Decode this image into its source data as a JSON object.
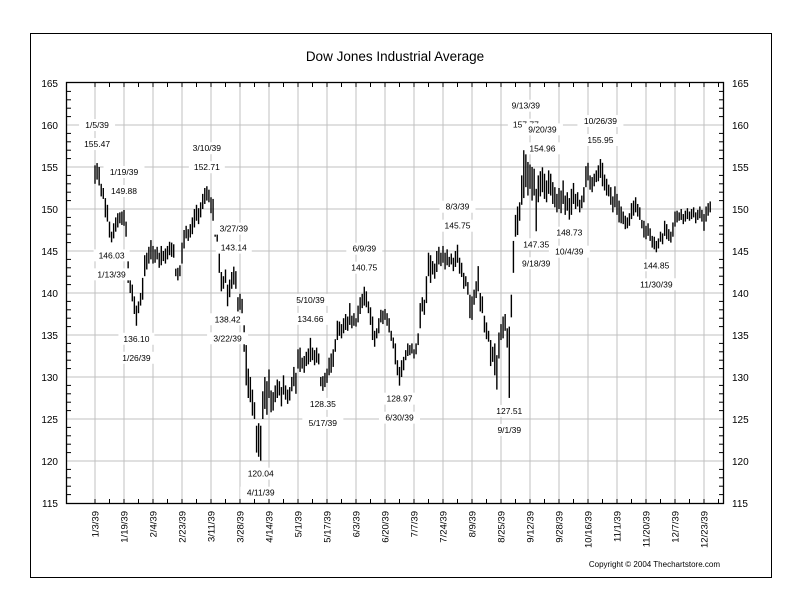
{
  "chart_data": {
    "type": "bar",
    "subtype": "high-low",
    "title": "Dow Jones Industrial Average",
    "copyright": "Copyright © 2004 Thechartstore.com",
    "ylim": [
      115,
      165
    ],
    "yticks": [
      115,
      120,
      125,
      130,
      135,
      140,
      145,
      150,
      155,
      160,
      165
    ],
    "y_axis_both_sides": true,
    "grid": true,
    "xticks": [
      "1/3/39",
      "1/19/39",
      "2/4/39",
      "2/23/39",
      "3/11/39",
      "3/28/39",
      "4/14/39",
      "5/1/39",
      "5/17/39",
      "6/3/39",
      "6/20/39",
      "7/7/39",
      "7/24/39",
      "8/9/39",
      "8/25/39",
      "9/12/39",
      "9/28/39",
      "10/16/39",
      "11/1/39",
      "11/20/39",
      "12/7/39",
      "12/23/39"
    ],
    "colors": {
      "bars": "#000000",
      "grid": "#c0c0c0",
      "frame": "#000000"
    },
    "high": [
      155.2,
      155.47,
      155,
      153,
      152.5,
      151.3,
      150.5,
      148.5,
      147.3,
      148.3,
      149,
      149.5,
      149.6,
      149.7,
      149.88,
      148.5,
      144.2,
      142,
      141,
      139.6,
      138.5,
      139,
      140,
      141.8,
      144.5,
      144.8,
      145.5,
      146.3,
      145.6,
      145.2,
      145.5,
      144.8,
      145.6,
      145,
      145.3,
      145.6,
      146.1,
      146,
      145.8,
      142.9,
      143,
      143.3,
      146,
      147.5,
      148,
      147.6,
      148.2,
      149,
      150,
      150.5,
      150.1,
      150.8,
      151.8,
      152.5,
      152.71,
      152.3,
      151.4,
      151.2,
      148,
      147,
      145.7,
      142.5,
      142,
      142.8,
      141,
      141.6,
      142.5,
      143.14,
      142.6,
      139.5,
      139.9,
      139.3,
      136.2,
      133.8,
      131,
      130,
      128.5,
      127,
      124.2,
      124.5,
      124.2,
      128.3,
      130,
      129.5,
      130.9,
      128.4,
      128.2,
      129,
      129.7,
      129.5,
      128.8,
      130.2,
      129,
      128.5,
      128.8,
      130,
      131.2,
      130.5,
      133.3,
      133.5,
      132.3,
      132.5,
      133,
      133.4,
      134.66,
      133.5,
      133.2,
      133.5,
      132.8,
      130,
      130.1,
      130.5,
      131,
      132.3,
      132.8,
      133.3,
      134.5,
      136.7,
      136.6,
      136.3,
      137,
      137.5,
      137.2,
      138.8,
      137.3,
      137.6,
      137,
      138.5,
      139.5,
      139.9,
      140.75,
      140.2,
      139,
      138.3,
      137.2,
      135.5,
      135.8,
      137,
      138,
      137.9,
      138.1,
      137.6,
      137,
      135.5,
      134.7,
      134,
      132,
      131.2,
      132,
      132.4,
      133.2,
      134,
      133.8,
      134,
      133.3,
      134,
      135.2,
      138.8,
      139.5,
      139.2,
      142,
      144.8,
      144.5,
      143.8,
      143.5,
      145,
      145.5,
      144.8,
      145.6,
      144.8,
      145.2,
      144.3,
      144.7,
      144.2,
      145,
      145.75,
      144.2,
      143.6,
      142.4,
      142,
      141.3,
      139.8,
      139.6,
      140.4,
      141.4,
      143.2,
      140,
      139.6,
      137.3,
      136.5,
      135.5,
      134.4,
      133.6,
      134,
      132.6,
      135.3,
      136.3,
      137.2,
      137.5,
      135.8,
      136,
      139.8,
      146.2,
      149.3,
      150.3,
      150.8,
      154,
      157,
      157.77,
      155.6,
      155.3,
      155,
      154.8,
      152.4,
      154,
      154.5,
      154.96,
      154.2,
      153.4,
      154.6,
      154.2,
      153.2,
      152.6,
      151.8,
      152.5,
      152.2,
      153.4,
      151.6,
      152,
      151.3,
      152.4,
      153.1,
      151.8,
      152,
      151.1,
      151.6,
      152.6,
      155.1,
      155.5,
      154,
      153.8,
      154.2,
      154.6,
      155.2,
      155.95,
      155.5,
      154.1,
      153.6,
      152.9,
      152.6,
      151.5,
      152.7,
      151.8,
      151,
      150.3,
      149.7,
      149.2,
      149,
      149.5,
      150.7,
      151,
      151.4,
      150.6,
      150.2,
      148.7,
      148.6,
      148,
      148.3,
      147.7,
      146.8,
      146.7,
      146.2,
      146.5,
      147.3,
      147.1,
      148.6,
      148.2,
      147.6,
      147.3,
      148.4,
      149.7,
      149.8,
      149.6,
      150,
      149.4,
      149.8,
      150.1,
      149.7,
      150,
      150.2,
      149.6,
      149.9,
      150.3,
      149.9,
      149.4,
      150.3,
      150.7,
      150.9
    ],
    "low": [
      153,
      153.5,
      152.8,
      151.5,
      151.2,
      149,
      148.5,
      146.6,
      146.03,
      146.5,
      147.3,
      147.8,
      148.3,
      148.1,
      148,
      146.7,
      141.2,
      140,
      139,
      137.5,
      136.1,
      137.6,
      138.5,
      139.2,
      142,
      142.8,
      143.5,
      144,
      143.5,
      143.6,
      144,
      143,
      143.3,
      143.8,
      143.5,
      144,
      144.5,
      144.3,
      144.2,
      142,
      141.5,
      142,
      143.5,
      145.3,
      146.5,
      146.2,
      146.6,
      147,
      147.8,
      148.6,
      148.2,
      149,
      150,
      150.6,
      151,
      150.8,
      149.5,
      148.6,
      146.7,
      145.5,
      142.4,
      140.2,
      140.5,
      141.2,
      138.42,
      139.5,
      140.5,
      141,
      140.5,
      137.8,
      138,
      137.5,
      133,
      129,
      127.5,
      127,
      125.4,
      125,
      121,
      120.5,
      120.04,
      125,
      126.2,
      125.5,
      127.5,
      125.8,
      126,
      127,
      127.5,
      127.8,
      126.5,
      127.9,
      127.3,
      126.8,
      127.2,
      128.3,
      128.9,
      128,
      131,
      130.6,
      131,
      130.5,
      131.3,
      131.5,
      131.8,
      132,
      131.4,
      131.7,
      131.5,
      128.9,
      128.35,
      128.8,
      129.3,
      130.2,
      130.5,
      131.2,
      133,
      134.4,
      134.9,
      134.6,
      135.2,
      135.6,
      135.5,
      136.2,
      135.8,
      136.1,
      136,
      136.5,
      137.5,
      138.2,
      138.5,
      138.3,
      137.6,
      136.2,
      134.4,
      133.6,
      134.6,
      135.2,
      136.5,
      136.3,
      136.8,
      136.1,
      135.3,
      134.3,
      133.4,
      131.5,
      130.2,
      128.97,
      130,
      130.8,
      132,
      132.5,
      132.6,
      132.8,
      132.2,
      132.7,
      133.8,
      135.8,
      137.8,
      137.4,
      138.8,
      142,
      141.2,
      142.2,
      141.7,
      142.5,
      143.4,
      143.2,
      143.6,
      142.8,
      143.3,
      143.1,
      143.4,
      142.6,
      143.1,
      143.6,
      142.3,
      141.9,
      140.5,
      140.8,
      139.8,
      137,
      136.8,
      138.6,
      139.4,
      140.2,
      137.8,
      137.6,
      135.3,
      134.5,
      134.2,
      131.3,
      131.8,
      130.2,
      128.5,
      132.2,
      134.4,
      134.6,
      135.5,
      133.5,
      127.51,
      137.1,
      142.4,
      146.7,
      146.9,
      148.6,
      150.5,
      151.3,
      152.6,
      151.6,
      152.4,
      151,
      151.6,
      147.35,
      150.8,
      151.5,
      152,
      151.2,
      150.8,
      151.8,
      151.6,
      150.6,
      150.2,
      149.6,
      150,
      149.5,
      150.6,
      149.3,
      149.8,
      148.73,
      149.3,
      150.6,
      150,
      150.3,
      149.6,
      150.1,
      150.8,
      152.6,
      153.4,
      152.3,
      152,
      152.7,
      153.2,
      153.3,
      153.7,
      152.7,
      152.2,
      151.6,
      151.5,
      150.5,
      149.6,
      150.2,
      149.3,
      148.4,
      148.3,
      148.2,
      147.6,
      147.7,
      148,
      148.8,
      149.2,
      149.6,
      149.1,
      148.7,
      147.7,
      146.6,
      146.4,
      146.8,
      146.2,
      145.4,
      145.2,
      144.85,
      145.3,
      146.1,
      145.8,
      146.8,
      146.4,
      146.2,
      146,
      146.7,
      147.9,
      148.4,
      148.6,
      148.7,
      148.2,
      148.5,
      148.8,
      148.6,
      148.8,
      149,
      148.3,
      148.7,
      148.9,
      148.5,
      147.4,
      148.5,
      149.2,
      149.6
    ],
    "annotations": [
      {
        "date": "1/5/39",
        "value": "155.47",
        "kind": "high"
      },
      {
        "date": "1/13/39",
        "value": "146.03",
        "kind": "low"
      },
      {
        "date": "1/19/39",
        "value": "149.88",
        "kind": "high"
      },
      {
        "date": "1/26/39",
        "value": "136.10",
        "kind": "low"
      },
      {
        "date": "3/10/39",
        "value": "152.71",
        "kind": "high"
      },
      {
        "date": "3/22/39",
        "value": "138.42",
        "kind": "low"
      },
      {
        "date": "3/27/39",
        "value": "143.14",
        "kind": "high"
      },
      {
        "date": "4/11/39",
        "value": "120.04",
        "kind": "low"
      },
      {
        "date": "5/10/39",
        "value": "134.66",
        "kind": "high"
      },
      {
        "date": "5/17/39",
        "value": "128.35",
        "kind": "low"
      },
      {
        "date": "6/9/39",
        "value": "140.75",
        "kind": "high"
      },
      {
        "date": "6/30/39",
        "value": "128.97",
        "kind": "low"
      },
      {
        "date": "8/3/39",
        "value": "145.75",
        "kind": "high"
      },
      {
        "date": "9/1/39",
        "value": "127.51",
        "kind": "low"
      },
      {
        "date": "9/13/39",
        "value": "157.77",
        "kind": "high"
      },
      {
        "date": "9/18/39",
        "value": "147.35",
        "kind": "low"
      },
      {
        "date": "9/20/39",
        "value": "154.96",
        "kind": "high"
      },
      {
        "date": "10/4/39",
        "value": "148.73",
        "kind": "low"
      },
      {
        "date": "10/26/39",
        "value": "155.95",
        "kind": "high"
      },
      {
        "date": "11/30/39",
        "value": "144.85",
        "kind": "low"
      }
    ]
  }
}
